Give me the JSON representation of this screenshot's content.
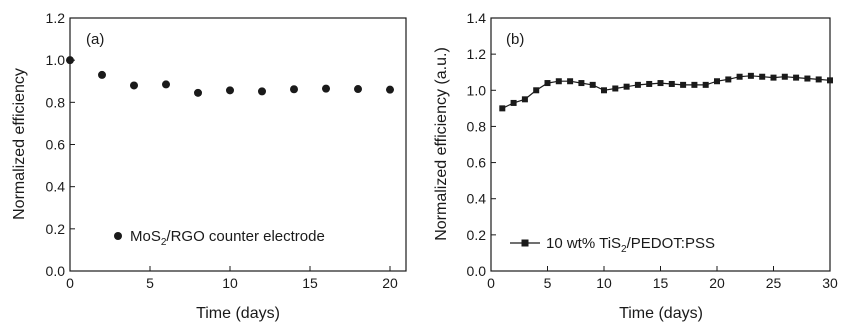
{
  "chart_data": [
    {
      "panel": "(a)",
      "type": "scatter",
      "xlabel": "Time (days)",
      "ylabel": "Normalized efficiency",
      "xlim": [
        0,
        21
      ],
      "ylim": [
        0.0,
        1.2
      ],
      "xticks": [
        "0",
        "5",
        "10",
        "15",
        "20"
      ],
      "yticks": [
        "0.0",
        "0.2",
        "0.4",
        "0.6",
        "0.8",
        "1.0",
        "1.2"
      ],
      "legend_position": "bottom-center",
      "series": [
        {
          "name": "MoS2/RGO counter electrode",
          "marker": "circle",
          "x": [
            0,
            2,
            4,
            6,
            8,
            10,
            12,
            14,
            16,
            18,
            20
          ],
          "y": [
            1.0,
            0.93,
            0.88,
            0.885,
            0.845,
            0.857,
            0.852,
            0.862,
            0.865,
            0.863,
            0.86
          ]
        }
      ]
    },
    {
      "panel": "(b)",
      "type": "line",
      "xlabel": "Time (days)",
      "ylabel": "Normalized efficiency (a.u.)",
      "xlim": [
        0,
        30
      ],
      "ylim": [
        0.0,
        1.4
      ],
      "xticks": [
        "0",
        "5",
        "10",
        "15",
        "20",
        "25",
        "30"
      ],
      "yticks": [
        "0.0",
        "0.2",
        "0.4",
        "0.6",
        "0.8",
        "1.0",
        "1.2",
        "1.4"
      ],
      "legend_position": "bottom-left",
      "series": [
        {
          "name": "10 wt% TiS2/PEDOT:PSS",
          "marker": "square",
          "x": [
            1,
            2,
            3,
            4,
            5,
            6,
            7,
            8,
            9,
            10,
            11,
            12,
            13,
            14,
            15,
            16,
            17,
            18,
            19,
            20,
            21,
            22,
            23,
            24,
            25,
            26,
            27,
            28,
            29,
            30
          ],
          "y": [
            0.9,
            0.93,
            0.95,
            1.0,
            1.04,
            1.05,
            1.05,
            1.04,
            1.03,
            1.0,
            1.01,
            1.02,
            1.03,
            1.035,
            1.04,
            1.035,
            1.03,
            1.03,
            1.03,
            1.05,
            1.06,
            1.075,
            1.08,
            1.075,
            1.07,
            1.075,
            1.07,
            1.065,
            1.06,
            1.055
          ]
        }
      ]
    }
  ],
  "legend_text": {
    "a": {
      "pre": "MoS",
      "sub": "2",
      "post": "/RGO counter electrode"
    },
    "b": {
      "pre": "10 wt% TiS",
      "sub": "2",
      "post": "/PEDOT:PSS"
    }
  },
  "colors": {
    "ink": "#1a1a1a",
    "background": "#ffffff"
  }
}
